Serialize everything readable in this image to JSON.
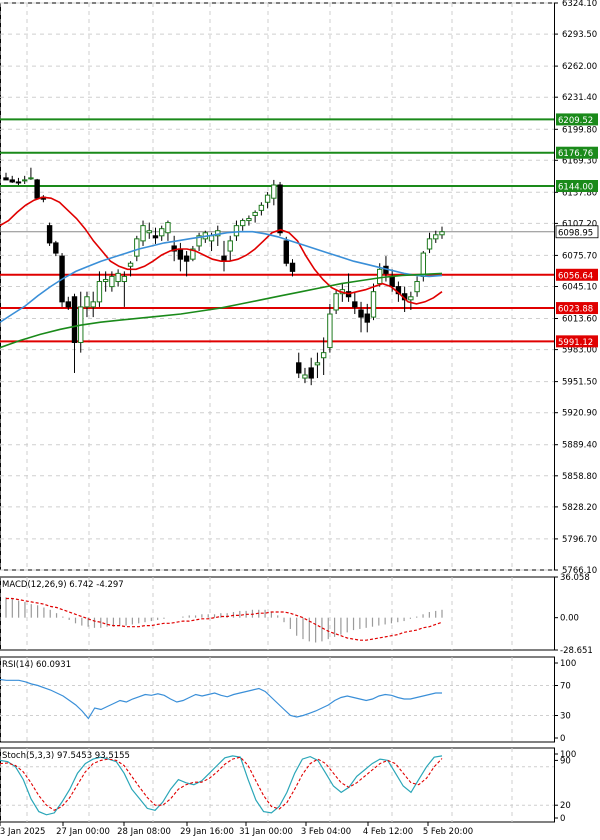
{
  "chart_data": {
    "type": "candlestick",
    "colors": {
      "up": "#1e7a1e",
      "down": "#1e7a1e",
      "hfill": "#ffffff",
      "grid": "#cfcfcf",
      "axis": "#000000",
      "level_green": "#1a8a1a",
      "level_red": "#e00000",
      "ma_fast": "#e00000",
      "ma_mid": "#3a8fd8",
      "ma_slow": "#1a8a1a",
      "current_price": "#8a8a8a"
    },
    "main": {
      "ylim": [
        5766.1,
        6324.1
      ],
      "y_ticks": [
        "6324.10",
        "6293.50",
        "6262.00",
        "6231.40",
        "6199.80",
        "6169.30",
        "6137.80",
        "6107.20",
        "6075.70",
        "6045.10",
        "6013.60",
        "5983.00",
        "5951.50",
        "5920.90",
        "5889.40",
        "5858.80",
        "5828.20",
        "5796.70",
        "5766.10"
      ],
      "levels": [
        {
          "value": 6209.52,
          "label": "6209.52",
          "color": "green"
        },
        {
          "value": 6176.76,
          "label": "6176.76",
          "color": "green"
        },
        {
          "value": 6144.0,
          "label": "6144.00",
          "color": "green"
        },
        {
          "value": 6056.64,
          "label": "6056.64",
          "color": "red"
        },
        {
          "value": 6023.88,
          "label": "6023.88",
          "color": "red"
        },
        {
          "value": 5991.12,
          "label": "5991.12",
          "color": "red"
        }
      ],
      "current_price": {
        "value": 6098.95,
        "label": "6098.95"
      },
      "candles": [
        [
          6152,
          6157,
          6150,
          6150
        ],
        [
          6150,
          6154,
          6147,
          6148
        ],
        [
          6148,
          6152,
          6145,
          6147
        ],
        [
          6150,
          6154,
          6146,
          6150
        ],
        [
          6152,
          6162,
          6150,
          6152
        ],
        [
          6150,
          6151,
          6132,
          6132
        ],
        [
          6133,
          6135,
          6128,
          6131
        ],
        [
          6105,
          6108,
          6085,
          6088
        ],
        [
          6088,
          6090,
          6075,
          6078
        ],
        [
          6075,
          6078,
          6025,
          6030
        ],
        [
          6030,
          6035,
          6022,
          6025
        ],
        [
          6035,
          6038,
          5960,
          5990
        ],
        [
          5990,
          6040,
          5980,
          6025
        ],
        [
          6025,
          6040,
          6015,
          6035
        ],
        [
          6025,
          6040,
          6015,
          6030
        ],
        [
          6030,
          6060,
          6025,
          6050
        ],
        [
          6050,
          6060,
          6040,
          6052
        ],
        [
          6045,
          6060,
          6040,
          6055
        ],
        [
          6050,
          6062,
          6045,
          6058
        ],
        [
          6050,
          6060,
          6025,
          6055
        ],
        [
          6065,
          6070,
          6055,
          6068
        ],
        [
          6075,
          6095,
          6070,
          6092
        ],
        [
          6090,
          6110,
          6085,
          6105
        ],
        [
          6098,
          6108,
          6092,
          6100
        ],
        [
          6095,
          6103,
          6087,
          6093
        ],
        [
          6095,
          6105,
          6090,
          6102
        ],
        [
          6098,
          6110,
          6090,
          6108
        ],
        [
          6085,
          6095,
          6070,
          6080
        ],
        [
          6082,
          6088,
          6060,
          6072
        ],
        [
          6075,
          6080,
          6055,
          6070
        ],
        [
          6072,
          6085,
          6070,
          6082
        ],
        [
          6085,
          6098,
          6080,
          6095
        ],
        [
          6092,
          6100,
          6088,
          6098
        ],
        [
          6090,
          6098,
          6080,
          6095
        ],
        [
          6095,
          6105,
          6085,
          6100
        ],
        [
          6075,
          6090,
          6060,
          6070
        ],
        [
          6080,
          6095,
          6070,
          6090
        ],
        [
          6095,
          6110,
          6090,
          6105
        ],
        [
          6105,
          6112,
          6100,
          6110
        ],
        [
          6110,
          6115,
          6105,
          6112
        ],
        [
          6115,
          6120,
          6108,
          6118
        ],
        [
          6120,
          6128,
          6115,
          6125
        ],
        [
          6128,
          6138,
          6122,
          6135
        ],
        [
          6132,
          6150,
          6125,
          6145
        ],
        [
          6145,
          6148,
          6095,
          6098
        ],
        [
          6090,
          6094,
          6065,
          6068
        ],
        [
          6068,
          6072,
          6055,
          6060
        ],
        [
          5970,
          5980,
          5955,
          5960
        ],
        [
          5955,
          5965,
          5950,
          5958
        ],
        [
          5965,
          5975,
          5948,
          5955
        ],
        [
          5968,
          5980,
          5955,
          5970
        ],
        [
          5975,
          5995,
          5958,
          5980
        ],
        [
          5985,
          6028,
          5980,
          6018
        ],
        [
          6022,
          6042,
          6018,
          6038
        ],
        [
          6038,
          6048,
          6030,
          6042
        ],
        [
          6040,
          6058,
          6030,
          6035
        ],
        [
          6030,
          6040,
          6018,
          6025
        ],
        [
          6022,
          6030,
          6000,
          6015
        ],
        [
          6018,
          6028,
          6000,
          6010
        ],
        [
          6015,
          6048,
          6012,
          6040
        ],
        [
          6048,
          6068,
          6045,
          6062
        ],
        [
          6065,
          6075,
          6050,
          6058
        ],
        [
          6055,
          6062,
          6040,
          6045
        ],
        [
          6045,
          6050,
          6030,
          6038
        ],
        [
          6038,
          6045,
          6020,
          6032
        ],
        [
          6032,
          6040,
          6022,
          6035
        ],
        [
          6040,
          6055,
          6035,
          6050
        ],
        [
          6055,
          6080,
          6050,
          6078
        ],
        [
          6082,
          6098,
          6078,
          6092
        ],
        [
          6092,
          6100,
          6088,
          6096
        ],
        [
          6096,
          6104,
          6092,
          6099
        ]
      ],
      "ma_fast": [
        6105,
        6110,
        6118,
        6125,
        6130,
        6133,
        6132,
        6128,
        6120,
        6112,
        6102,
        6090,
        6080,
        6070,
        6065,
        6062,
        6062,
        6065,
        6070,
        6076,
        6080,
        6082,
        6082,
        6080,
        6076,
        6072,
        6070,
        6070,
        6072,
        6076,
        6082,
        6090,
        6098,
        6101,
        6098,
        6090,
        6075,
        6062,
        6052,
        6044,
        6040,
        6038,
        6040,
        6042,
        6045,
        6048,
        6045,
        6038,
        6030,
        6028,
        6030,
        6034,
        6040
      ],
      "ma_mid": [
        6010,
        6018,
        6026,
        6036,
        6045,
        6053,
        6060,
        6065,
        6070,
        6074,
        6078,
        6082,
        6085,
        6088,
        6090,
        6092,
        6094,
        6096,
        6098,
        6099,
        6099,
        6097,
        6094,
        6090,
        6086,
        6082,
        6078,
        6074,
        6070,
        6067,
        6064,
        6061,
        6058,
        6056,
        6055,
        6056
      ],
      "ma_slow": [
        5985,
        5992,
        5998,
        6003,
        6007,
        6010,
        6012,
        6014,
        6016,
        6018,
        6021,
        6024,
        6028,
        6032,
        6036,
        6040,
        6044,
        6048,
        6051,
        6054,
        6056,
        6057,
        6058
      ]
    },
    "x_ticks": [
      "23 Jan 2025",
      "27 Jan 00:00",
      "28 Jan 08:00",
      "29 Jan 16:00",
      "31 Jan 00:00",
      "3 Feb 04:00",
      "4 Feb 12:00",
      "5 Feb 20:00"
    ],
    "macd": {
      "label": "MACD(12,26,9) 6.742 -4.297",
      "ylim": [
        -28.651,
        36.058
      ],
      "ticks": [
        "36.058",
        "0.00",
        "-28.651"
      ],
      "hist": [
        18,
        17,
        15,
        14,
        12,
        11,
        9,
        7,
        4,
        1,
        -2,
        -5,
        -7,
        -8,
        -9,
        -9,
        -8,
        -8,
        -7,
        -7,
        -6,
        -5,
        -4,
        -3,
        -2,
        -1,
        0,
        0,
        1,
        2,
        2,
        3,
        3,
        3,
        4,
        4,
        5,
        6,
        6,
        7,
        7,
        7,
        5,
        2,
        -4,
        -10,
        -16,
        -19,
        -21,
        -22,
        -21,
        -19,
        -17,
        -15,
        -13,
        -11,
        -10,
        -9,
        -8,
        -7,
        -6,
        -5,
        -4,
        -3,
        -1,
        1,
        3,
        5,
        6,
        7
      ],
      "signal": [
        17,
        17,
        16,
        15,
        14,
        13,
        12,
        10,
        9,
        7,
        5,
        3,
        1,
        -1,
        -3,
        -4,
        -6,
        -7,
        -7,
        -8,
        -8,
        -8,
        -7,
        -7,
        -6,
        -5,
        -5,
        -4,
        -3,
        -3,
        -2,
        -1,
        -1,
        0,
        1,
        1,
        2,
        2,
        3,
        3,
        4,
        4,
        5,
        5,
        5,
        4,
        2,
        0,
        -3,
        -6,
        -9,
        -12,
        -14,
        -16,
        -18,
        -19,
        -20,
        -20,
        -19,
        -18,
        -17,
        -16,
        -15,
        -13,
        -12,
        -11,
        -9,
        -8,
        -6,
        -4
      ]
    },
    "rsi": {
      "label": "RSI(14) 60.0931",
      "ylim": [
        0,
        100
      ],
      "ticks": [
        "100",
        "70",
        "30",
        "0"
      ],
      "values": [
        78,
        77,
        77,
        77,
        75,
        72,
        70,
        67,
        64,
        60,
        56,
        50,
        44,
        36,
        26,
        40,
        38,
        42,
        46,
        50,
        48,
        52,
        55,
        58,
        57,
        59,
        57,
        52,
        48,
        50,
        54,
        58,
        56,
        58,
        60,
        57,
        55,
        58,
        60,
        62,
        64,
        66,
        62,
        54,
        46,
        38,
        30,
        28,
        30,
        33,
        36,
        40,
        44,
        50,
        54,
        56,
        54,
        52,
        50,
        52,
        56,
        58,
        57,
        54,
        52,
        52,
        54,
        56,
        58,
        60,
        60
      ]
    },
    "stoch": {
      "label": "Stoch(5,3,3) 97.5453 93.5155",
      "ylim": [
        0,
        100
      ],
      "ticks": [
        "100",
        "90",
        "20",
        "0"
      ],
      "k": [
        90,
        88,
        80,
        60,
        30,
        10,
        5,
        8,
        25,
        45,
        70,
        85,
        92,
        95,
        92,
        88,
        70,
        45,
        30,
        15,
        12,
        25,
        45,
        60,
        55,
        52,
        58,
        70,
        82,
        94,
        97,
        95,
        60,
        28,
        10,
        8,
        18,
        40,
        70,
        92,
        96,
        90,
        70,
        50,
        40,
        48,
        65,
        75,
        85,
        92,
        90,
        70,
        50,
        40,
        60,
        80,
        95,
        97
      ],
      "d": [
        85,
        86,
        82,
        72,
        55,
        35,
        20,
        12,
        18,
        32,
        52,
        72,
        85,
        90,
        92,
        90,
        82,
        65,
        48,
        32,
        20,
        20,
        30,
        45,
        52,
        56,
        56,
        62,
        72,
        84,
        92,
        95,
        82,
        58,
        35,
        18,
        14,
        24,
        45,
        68,
        85,
        92,
        85,
        70,
        55,
        48,
        55,
        65,
        75,
        85,
        90,
        85,
        70,
        55,
        52,
        62,
        80,
        93
      ]
    }
  }
}
